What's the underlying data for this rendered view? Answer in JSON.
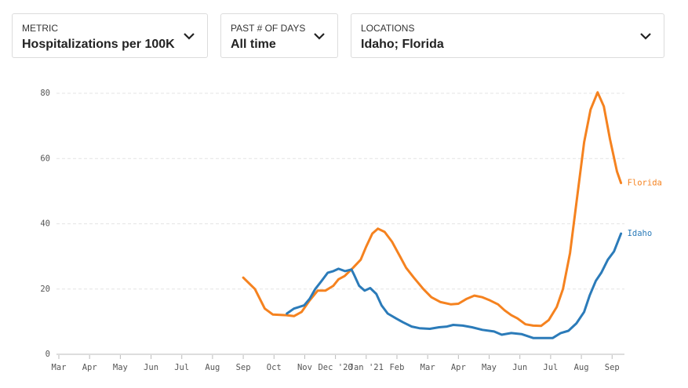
{
  "controls": [
    {
      "label": "METRIC",
      "value": "Hospitalizations per 100K"
    },
    {
      "label": "PAST # OF DAYS",
      "value": "All time"
    },
    {
      "label": "LOCATIONS",
      "value": "Idaho; Florida"
    }
  ],
  "chart_data": {
    "type": "line",
    "xlim": [
      0,
      18.3
    ],
    "xticks": [
      {
        "value": 0,
        "label": "Mar"
      },
      {
        "value": 1,
        "label": "Apr"
      },
      {
        "value": 2,
        "label": "May"
      },
      {
        "value": 3,
        "label": "Jun"
      },
      {
        "value": 4,
        "label": "Jul"
      },
      {
        "value": 5,
        "label": "Aug"
      },
      {
        "value": 6,
        "label": "Sep"
      },
      {
        "value": 7,
        "label": "Oct"
      },
      {
        "value": 8,
        "label": "Nov"
      },
      {
        "value": 9,
        "label": "Dec '20"
      },
      {
        "value": 10,
        "label": "Jan '21"
      },
      {
        "value": 11,
        "label": "Feb"
      },
      {
        "value": 12,
        "label": "Mar"
      },
      {
        "value": 13,
        "label": "Apr"
      },
      {
        "value": 14,
        "label": "May"
      },
      {
        "value": 15,
        "label": "Jun"
      },
      {
        "value": 16,
        "label": "Jul"
      },
      {
        "value": 17,
        "label": "Aug"
      },
      {
        "value": 18,
        "label": "Sep"
      }
    ],
    "ylim": [
      0,
      80
    ],
    "yticks": [
      0,
      20,
      40,
      60,
      80
    ],
    "grid": true,
    "series": [
      {
        "name": "Florida",
        "color": "#f5821f",
        "x": [
          6.0,
          6.38,
          6.7,
          6.96,
          7.4,
          7.65,
          7.9,
          8.16,
          8.42,
          8.67,
          8.93,
          9.1,
          9.3,
          9.57,
          9.82,
          10.0,
          10.2,
          10.38,
          10.6,
          10.84,
          11.1,
          11.3,
          11.55,
          11.86,
          12.12,
          12.42,
          12.76,
          13.0,
          13.27,
          13.52,
          13.78,
          14.03,
          14.29,
          14.5,
          14.72,
          14.92,
          15.18,
          15.43,
          15.69,
          15.94,
          16.2,
          16.4,
          16.63,
          16.86,
          17.09,
          17.3,
          17.53,
          17.73,
          17.93,
          18.16,
          18.29
        ],
        "values": [
          23.5,
          20,
          14,
          12.2,
          12,
          11.7,
          13,
          16.5,
          19.5,
          19.5,
          21,
          23,
          24,
          26.5,
          29,
          33,
          37,
          38.5,
          37.5,
          34.5,
          30,
          26.5,
          23.5,
          20,
          17.5,
          16,
          15.3,
          15.5,
          17,
          18,
          17.5,
          16.5,
          15.3,
          13.5,
          12,
          11,
          9.2,
          8.8,
          8.7,
          10.5,
          14.5,
          20,
          31,
          48,
          65,
          75,
          80.3,
          76,
          66,
          56,
          52.5
        ]
      },
      {
        "name": "Idaho",
        "color": "#2b7bb9",
        "x": [
          7.42,
          7.65,
          7.98,
          8.16,
          8.34,
          8.55,
          8.75,
          8.93,
          9.1,
          9.31,
          9.52,
          9.6,
          9.77,
          9.95,
          10.13,
          10.33,
          10.5,
          10.7,
          10.97,
          11.2,
          11.48,
          11.73,
          12.07,
          12.37,
          12.63,
          12.83,
          13.14,
          13.44,
          13.78,
          14.16,
          14.41,
          14.72,
          15.05,
          15.43,
          15.82,
          16.07,
          16.33,
          16.58,
          16.84,
          17.09,
          17.27,
          17.47,
          17.65,
          17.86,
          18.06,
          18.29
        ],
        "values": [
          12.5,
          14,
          15,
          17,
          20,
          22.5,
          25,
          25.5,
          26.2,
          25.5,
          26,
          24.5,
          21,
          19.5,
          20.3,
          18.5,
          15,
          12.5,
          11,
          9.8,
          8.5,
          8,
          7.8,
          8.3,
          8.5,
          9,
          8.8,
          8.3,
          7.5,
          7,
          6,
          6.5,
          6.2,
          5,
          5,
          5,
          6.5,
          7.2,
          9.5,
          13,
          18,
          22.5,
          25,
          29,
          31.5,
          37
        ]
      }
    ]
  }
}
